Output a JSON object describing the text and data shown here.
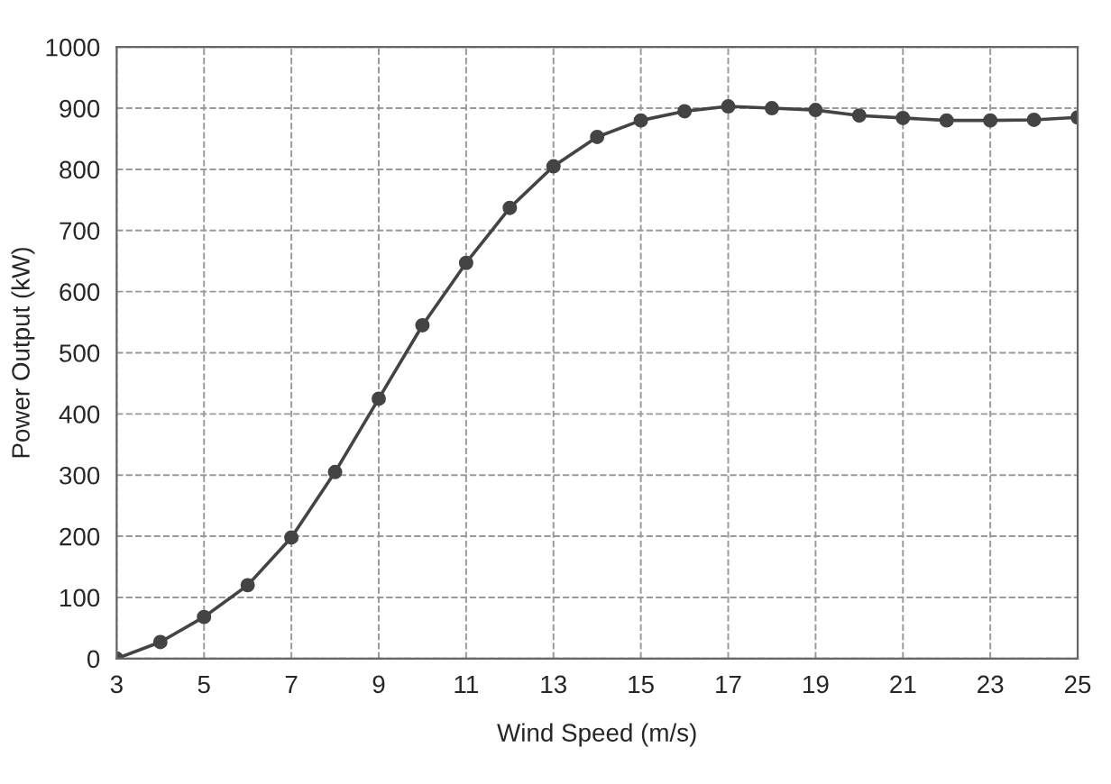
{
  "chart_data": {
    "type": "line",
    "xlabel": "Wind Speed (m/s)",
    "ylabel": "Power Output (kW)",
    "x": [
      3,
      4,
      5,
      6,
      7,
      8,
      9,
      10,
      11,
      12,
      13,
      14,
      15,
      16,
      17,
      18,
      19,
      20,
      21,
      22,
      23,
      24,
      25
    ],
    "series": [
      {
        "color": "#444444",
        "values": [
          0,
          27,
          68,
          120,
          198,
          305,
          425,
          545,
          647,
          737,
          805,
          853,
          880,
          895,
          903,
          900,
          897,
          888,
          884,
          880,
          880,
          881,
          885
        ]
      }
    ],
    "xlim": [
      3,
      25
    ],
    "xticks": [
      3,
      5,
      7,
      9,
      11,
      13,
      15,
      17,
      19,
      21,
      23,
      25
    ],
    "ylim": [
      0,
      1000
    ],
    "yticks": [
      0,
      100,
      200,
      300,
      400,
      500,
      600,
      700,
      800,
      900,
      1000
    ],
    "grid": true,
    "marker": "circle",
    "line_style": "solid",
    "legend": false
  }
}
